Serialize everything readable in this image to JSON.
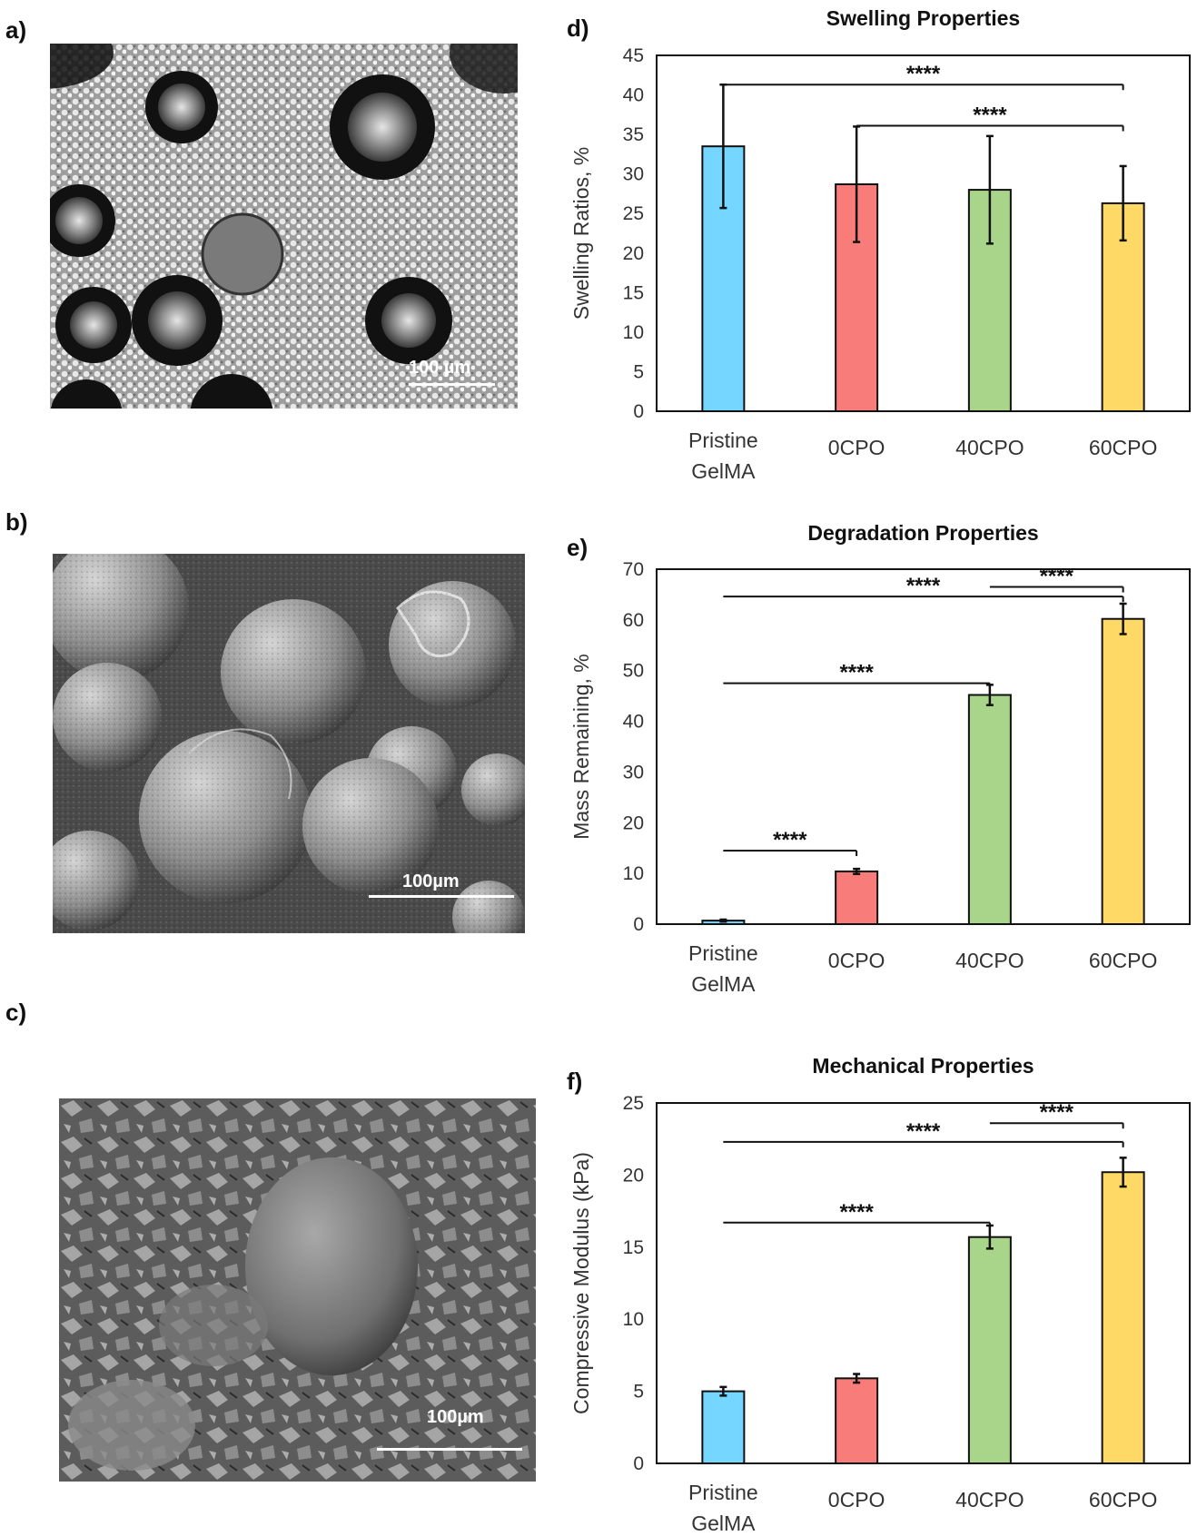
{
  "panels": {
    "a": {
      "label": "a)",
      "scale": "100 µm"
    },
    "b": {
      "label": "b)",
      "scale": "100µm"
    },
    "c": {
      "label": "c)",
      "scale": "100µm"
    },
    "d": {
      "label": "d)"
    },
    "e": {
      "label": "e)"
    },
    "f": {
      "label": "f)"
    }
  },
  "colors": {
    "pristine": "#75D6FF",
    "cpo0": "#F87C7A",
    "cpo40": "#A8D58A",
    "cpo60": "#FFD966"
  },
  "chart_data": [
    {
      "id": "d",
      "type": "bar",
      "title": "Swelling Properties",
      "ylabel": "Swelling Ratios, %",
      "categories": [
        "Pristine\nGelMA",
        "0CPO",
        "40CPO",
        "60CPO"
      ],
      "values": [
        33.5,
        28.7,
        28.0,
        26.3
      ],
      "errors": [
        7.8,
        7.3,
        6.8,
        4.7
      ],
      "ylim": [
        0,
        45
      ],
      "yticks": [
        0,
        5,
        10,
        15,
        20,
        25,
        30,
        35,
        40,
        45
      ],
      "significance": [
        {
          "from": 0,
          "to": 3,
          "label": "****",
          "y": 41.3
        },
        {
          "from": 1,
          "to": 3,
          "label": "****",
          "y": 36.1
        }
      ]
    },
    {
      "id": "e",
      "type": "bar",
      "title": "Degradation Properties",
      "ylabel": "Mass Remaining, %",
      "categories": [
        "Pristine\nGelMA",
        "0CPO",
        "40CPO",
        "60CPO"
      ],
      "values": [
        0.7,
        10.4,
        45.2,
        60.2
      ],
      "errors": [
        0.2,
        0.5,
        2.0,
        3.0
      ],
      "ylim": [
        0,
        70
      ],
      "yticks": [
        0,
        10,
        20,
        30,
        40,
        50,
        60,
        70
      ],
      "significance": [
        {
          "from": 0,
          "to": 1,
          "label": "****",
          "y": 14.5
        },
        {
          "from": 0,
          "to": 2,
          "label": "****",
          "y": 47.5
        },
        {
          "from": 0,
          "to": 3,
          "label": "****",
          "y": 64.6
        },
        {
          "from": 2,
          "to": 3,
          "label": "****",
          "y": 66.5
        }
      ]
    },
    {
      "id": "f",
      "type": "bar",
      "title": "Mechanical Properties",
      "ylabel": "Compressive Modulus (kPa)",
      "categories": [
        "Pristine\nGelMA",
        "0CPO",
        "40CPO",
        "60CPO"
      ],
      "values": [
        5.0,
        5.9,
        15.7,
        20.2
      ],
      "errors": [
        0.3,
        0.3,
        0.8,
        1.0
      ],
      "ylim": [
        0,
        25
      ],
      "yticks": [
        0,
        5,
        10,
        15,
        20,
        25
      ],
      "significance": [
        {
          "from": 0,
          "to": 2,
          "label": "****",
          "y": 16.7
        },
        {
          "from": 0,
          "to": 3,
          "label": "****",
          "y": 22.3
        },
        {
          "from": 2,
          "to": 3,
          "label": "****",
          "y": 23.6
        }
      ]
    }
  ]
}
